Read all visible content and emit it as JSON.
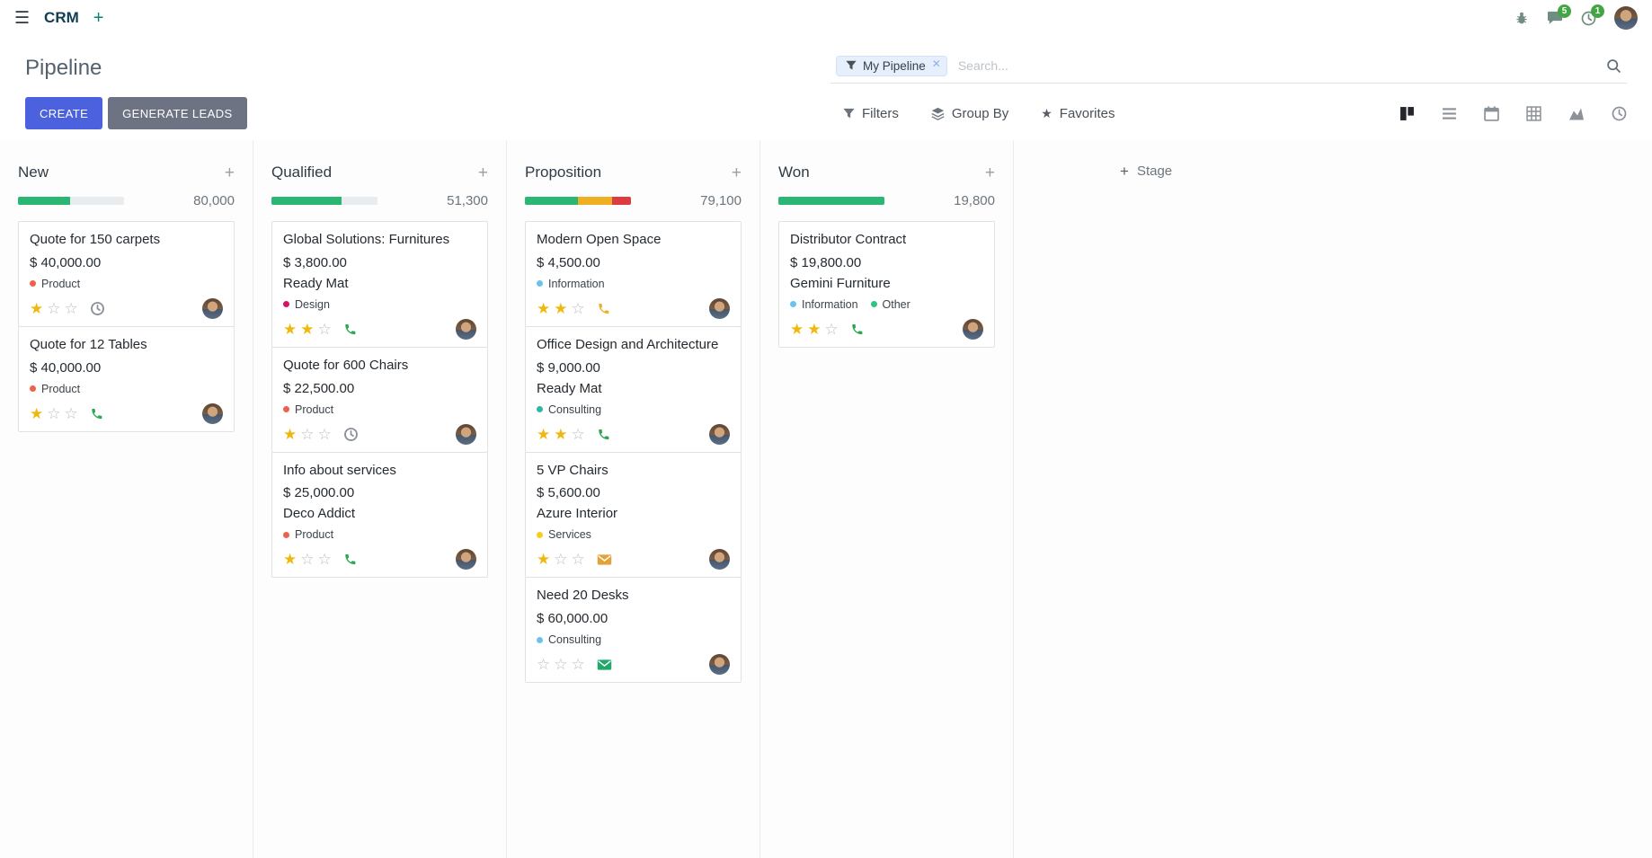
{
  "colors": {
    "primary": "#4b61dd",
    "secondary": "#6d7382",
    "badge-green": "#44a544",
    "star-gold": "#efb810",
    "progress-green": "#2bb673",
    "progress-yellow": "#eeb022",
    "progress-red": "#dc3c40"
  },
  "navbar": {
    "app_name": "CRM",
    "messages_badge": "5",
    "activities_badge": "1"
  },
  "control_panel": {
    "title": "Pipeline",
    "search_facet": "My Pipeline",
    "search_placeholder": "Search...",
    "create_label": "CREATE",
    "generate_leads_label": "GENERATE LEADS",
    "filters_label": "Filters",
    "group_by_label": "Group By",
    "favorites_label": "Favorites"
  },
  "view_switcher": {
    "active": "kanban"
  },
  "board": {
    "add_stage_label": "Stage",
    "columns": [
      {
        "name": "New",
        "total": "80,000",
        "progress": [
          {
            "color": "#2bb673",
            "percent": 49
          }
        ],
        "cards": [
          {
            "title": "Quote for 150 carpets",
            "amount": "$ 40,000.00",
            "partner": "",
            "tags": [
              {
                "label": "Product",
                "color": "#f06050"
              }
            ],
            "stars": 1,
            "activity": {
              "icon": "clock",
              "color": "#8a8f98"
            }
          },
          {
            "title": "Quote for 12 Tables",
            "amount": "$ 40,000.00",
            "partner": "",
            "tags": [
              {
                "label": "Product",
                "color": "#f06050"
              }
            ],
            "stars": 1,
            "activity": {
              "icon": "phone",
              "color": "#2aa74f"
            }
          }
        ]
      },
      {
        "name": "Qualified",
        "total": "51,300",
        "progress": [
          {
            "color": "#2bb673",
            "percent": 66
          }
        ],
        "cards": [
          {
            "title": "Global Solutions: Furnitures",
            "amount": "$ 3,800.00",
            "partner": "Ready Mat",
            "tags": [
              {
                "label": "Design",
                "color": "#d6145f"
              }
            ],
            "stars": 2,
            "activity": {
              "icon": "phone",
              "color": "#2aa74f"
            }
          },
          {
            "title": "Quote for 600 Chairs",
            "amount": "$ 22,500.00",
            "partner": "",
            "tags": [
              {
                "label": "Product",
                "color": "#f06050"
              }
            ],
            "stars": 1,
            "activity": {
              "icon": "clock",
              "color": "#8a8f98"
            }
          },
          {
            "title": "Info about services",
            "amount": "$ 25,000.00",
            "partner": "Deco Addict",
            "tags": [
              {
                "label": "Product",
                "color": "#f06050"
              }
            ],
            "stars": 1,
            "activity": {
              "icon": "phone",
              "color": "#2aa74f"
            }
          }
        ]
      },
      {
        "name": "Proposition",
        "total": "79,100",
        "progress": [
          {
            "color": "#2bb673",
            "percent": 50
          },
          {
            "color": "#eeb022",
            "percent": 32
          },
          {
            "color": "#dc3c40",
            "percent": 18
          }
        ],
        "cards": [
          {
            "title": "Modern Open Space",
            "amount": "$ 4,500.00",
            "partner": "",
            "tags": [
              {
                "label": "Information",
                "color": "#6cc1ed"
              }
            ],
            "stars": 2,
            "activity": {
              "icon": "phone",
              "color": "#eab12c"
            }
          },
          {
            "title": "Office Design and Architecture",
            "amount": "$ 9,000.00",
            "partner": "Ready Mat",
            "tags": [
              {
                "label": "Consulting",
                "color": "#2fb7a4"
              }
            ],
            "stars": 2,
            "activity": {
              "icon": "phone",
              "color": "#2aa74f"
            }
          },
          {
            "title": "5 VP Chairs",
            "amount": "$ 5,600.00",
            "partner": "Azure Interior",
            "tags": [
              {
                "label": "Services",
                "color": "#f7cd1f"
              }
            ],
            "stars": 1,
            "activity": {
              "icon": "envelope",
              "color": "#e2a33b"
            }
          },
          {
            "title": "Need 20 Desks",
            "amount": "$ 60,000.00",
            "partner": "",
            "tags": [
              {
                "label": "Consulting",
                "color": "#6cc1ed"
              }
            ],
            "stars": 0,
            "activity": {
              "icon": "envelope",
              "color": "#21a86a"
            }
          }
        ]
      },
      {
        "name": "Won",
        "total": "19,800",
        "progress": [
          {
            "color": "#2bb673",
            "percent": 100
          }
        ],
        "cards": [
          {
            "title": "Distributor Contract",
            "amount": "$ 19,800.00",
            "partner": "Gemini Furniture",
            "tags": [
              {
                "label": "Information",
                "color": "#6cc1ed"
              },
              {
                "label": "Other",
                "color": "#30c381"
              }
            ],
            "stars": 2,
            "activity": {
              "icon": "phone",
              "color": "#2aa74f"
            }
          }
        ]
      }
    ]
  }
}
